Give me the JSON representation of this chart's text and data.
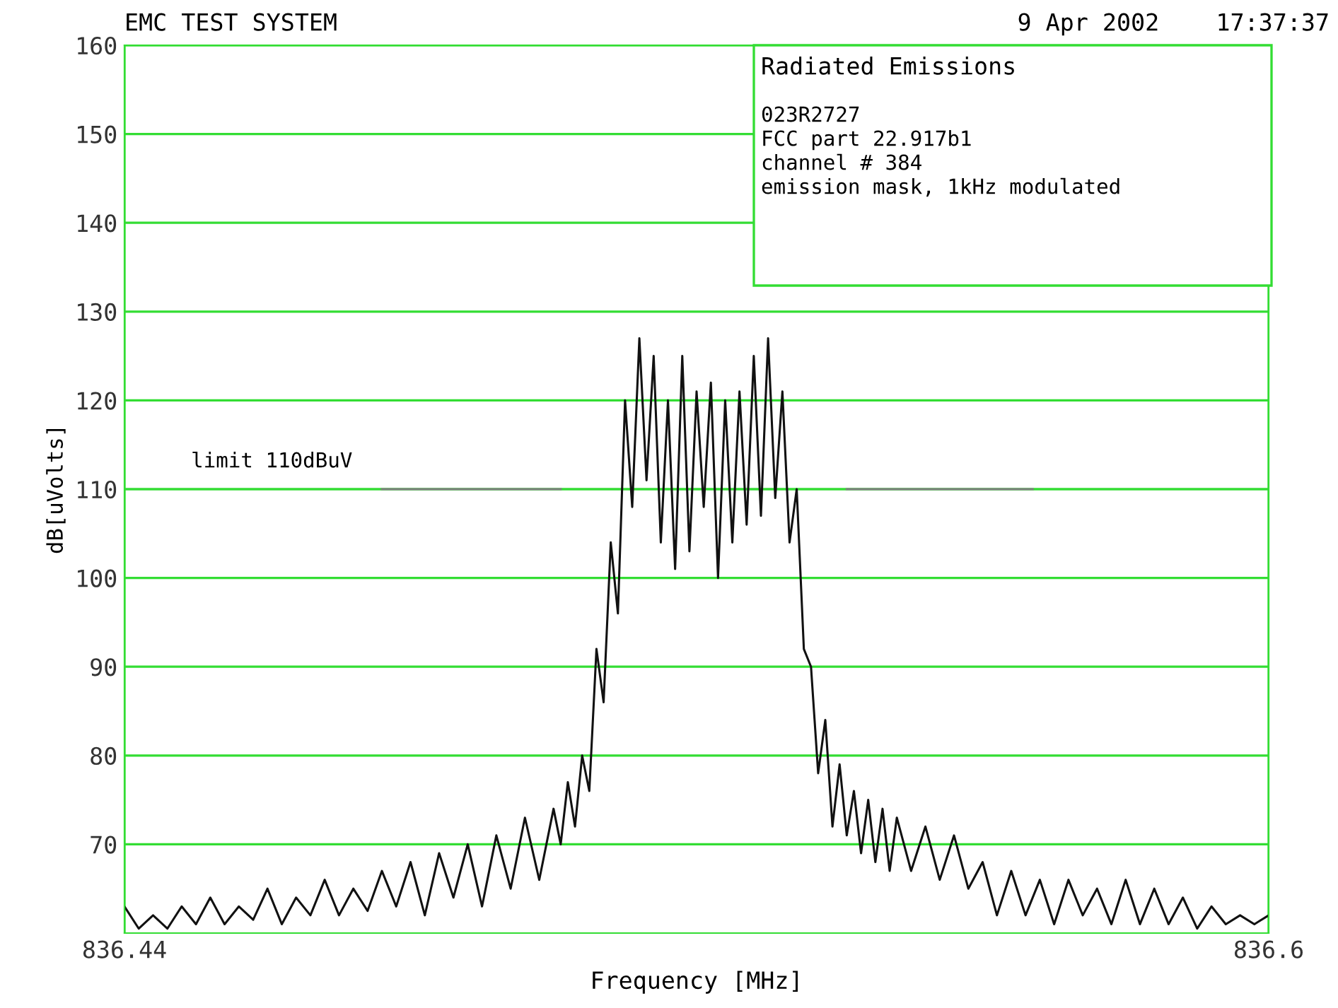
{
  "chart_data": {
    "type": "line",
    "xlabel": "Frequency [MHz]",
    "ylabel": "dB[uVolts]",
    "xlim": [
      836.44,
      836.6
    ],
    "xticks": [
      836.44,
      836.6
    ],
    "ylim": [
      60,
      160
    ],
    "yticks": [
      70,
      80,
      90,
      100,
      110,
      120,
      130,
      140,
      150,
      160
    ],
    "grid": true,
    "legend": false,
    "marker": "none",
    "line_style": "solid",
    "series": [
      {
        "color": "#111111",
        "x": [
          836.44,
          836.442,
          836.444,
          836.446,
          836.448,
          836.45,
          836.452,
          836.454,
          836.456,
          836.458,
          836.46,
          836.462,
          836.464,
          836.466,
          836.468,
          836.47,
          836.472,
          836.474,
          836.476,
          836.478,
          836.48,
          836.482,
          836.484,
          836.486,
          836.488,
          836.49,
          836.492,
          836.494,
          836.496,
          836.498,
          836.5,
          836.501,
          836.502,
          836.503,
          836.504,
          836.505,
          836.506,
          836.507,
          836.508,
          836.509,
          836.51,
          836.511,
          836.512,
          836.513,
          836.514,
          836.515,
          836.516,
          836.517,
          836.518,
          836.519,
          836.52,
          836.521,
          836.522,
          836.523,
          836.524,
          836.525,
          836.526,
          836.527,
          836.528,
          836.529,
          836.53,
          836.531,
          836.532,
          836.533,
          836.534,
          836.535,
          836.536,
          836.537,
          836.538,
          836.539,
          836.54,
          836.541,
          836.542,
          836.543,
          836.544,
          836.545,
          836.546,
          836.547,
          836.548,
          836.55,
          836.552,
          836.554,
          836.556,
          836.558,
          836.56,
          836.562,
          836.564,
          836.566,
          836.568,
          836.57,
          836.572,
          836.574,
          836.576,
          836.578,
          836.58,
          836.582,
          836.584,
          836.586,
          836.588,
          836.59,
          836.592,
          836.594,
          836.596,
          836.598,
          836.6
        ],
        "values": [
          63,
          60.5,
          62,
          60.5,
          63,
          61,
          64,
          61,
          63,
          61.5,
          65,
          61,
          64,
          62,
          66,
          62,
          65,
          62.5,
          67,
          63,
          68,
          62,
          69,
          64,
          70,
          63,
          71,
          65,
          73,
          66,
          74,
          70,
          77,
          72,
          80,
          76,
          92,
          86,
          104,
          96,
          120,
          108,
          127,
          111,
          125,
          104,
          120,
          101,
          125,
          103,
          121,
          108,
          122,
          100,
          120,
          104,
          121,
          106,
          125,
          107,
          127,
          109,
          121,
          104,
          110,
          92,
          90,
          78,
          84,
          72,
          79,
          71,
          76,
          69,
          75,
          68,
          74,
          67,
          73,
          67,
          72,
          66,
          71,
          65,
          68,
          62,
          67,
          62,
          66,
          61,
          66,
          62,
          65,
          61,
          66,
          61,
          65,
          61,
          64,
          60.5,
          63,
          61,
          62,
          61,
          62
        ]
      },
      {
        "color": "#808080",
        "x": [
          836.476,
          836.501
        ],
        "values": [
          110,
          110
        ]
      },
      {
        "color": "#808080",
        "x": [
          836.541,
          836.567
        ],
        "values": [
          110,
          110
        ]
      }
    ],
    "annotations": [
      "EMC TEST SYSTEM",
      "9 Apr 2002    17:37:37",
      "Radiated Emissions",
      "023R2727",
      "FCC part 22.917b1",
      "channel # 384",
      "emission mask, 1kHz modulated",
      {
        "text": "limit 110dBuV",
        "x": 836.476,
        "y": 110
      }
    ]
  }
}
